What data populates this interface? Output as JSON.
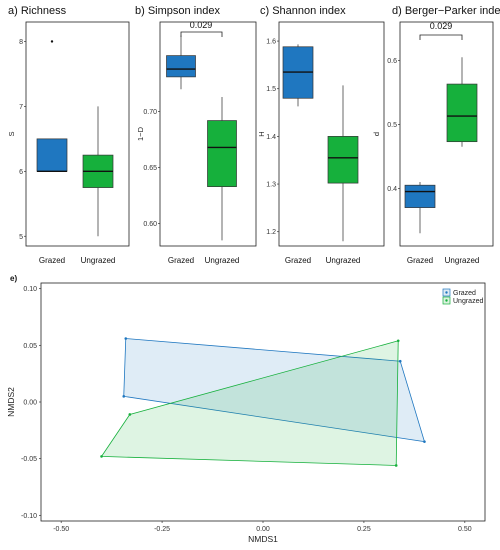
{
  "colors": {
    "grazed": "#1f77c0",
    "ungrazed": "#16b03c",
    "grazed_fill": "#1f77c0",
    "ungrazed_fill": "#16b03c"
  },
  "chart_data": [
    {
      "type": "box",
      "title": "a) Richness",
      "ylabel": "S",
      "categories": [
        "Grazed",
        "Ungrazed"
      ],
      "ylim": [
        4.85,
        8.3
      ],
      "yticks": [
        5,
        6,
        7,
        8
      ],
      "boxes": [
        {
          "min": 6.0,
          "q1": 6.0,
          "median": 6.0,
          "q3": 6.5,
          "max": 6.5,
          "outliers": [
            8.0
          ]
        },
        {
          "min": 5.0,
          "q1": 5.75,
          "median": 6.0,
          "q3": 6.25,
          "max": 7.0,
          "outliers": []
        }
      ]
    },
    {
      "type": "box",
      "title": "b) Simpson index",
      "ylabel": "1−D",
      "categories": [
        "Grazed",
        "Ungrazed"
      ],
      "ylim": [
        0.58,
        0.78
      ],
      "yticks": [
        0.6,
        0.65,
        0.7
      ],
      "ytick_labels": [
        "0.60",
        "0.65",
        "0.70"
      ],
      "annotation": "0.029",
      "boxes": [
        {
          "min": 0.72,
          "q1": 0.731,
          "median": 0.738,
          "q3": 0.75,
          "max": 0.768,
          "outliers": []
        },
        {
          "min": 0.585,
          "q1": 0.633,
          "median": 0.668,
          "q3": 0.692,
          "max": 0.713,
          "outliers": []
        }
      ]
    },
    {
      "type": "box",
      "title": "c) Shannon index",
      "ylabel": "H",
      "categories": [
        "Grazed",
        "Ungrazed"
      ],
      "ylim": [
        1.17,
        1.64
      ],
      "yticks": [
        1.2,
        1.3,
        1.4,
        1.5,
        1.6
      ],
      "boxes": [
        {
          "min": 1.463,
          "q1": 1.48,
          "median": 1.535,
          "q3": 1.588,
          "max": 1.593,
          "outliers": []
        },
        {
          "min": 1.18,
          "q1": 1.302,
          "median": 1.355,
          "q3": 1.4,
          "max": 1.507,
          "outliers": []
        }
      ]
    },
    {
      "type": "box",
      "title": "d) Berger−Parker index",
      "ylabel": "d",
      "categories": [
        "Grazed",
        "Ungrazed"
      ],
      "ylim": [
        0.31,
        0.66
      ],
      "yticks": [
        0.4,
        0.5,
        0.6
      ],
      "annotation": "0.029",
      "boxes": [
        {
          "min": 0.33,
          "q1": 0.37,
          "median": 0.395,
          "q3": 0.405,
          "max": 0.41,
          "outliers": []
        },
        {
          "min": 0.465,
          "q1": 0.473,
          "median": 0.513,
          "q3": 0.563,
          "max": 0.605,
          "outliers": []
        }
      ]
    },
    {
      "type": "scatter",
      "title": "e)",
      "xlabel": "NMDS1",
      "ylabel": "NMDS2",
      "xlim": [
        -0.55,
        0.55
      ],
      "ylim": [
        -0.105,
        0.105
      ],
      "xticks": [
        -0.5,
        -0.25,
        0.0,
        0.25,
        0.5
      ],
      "xtick_labels": [
        "-0.50",
        "-0.25",
        "0.00",
        "0.25",
        "0.50"
      ],
      "yticks": [
        -0.1,
        -0.05,
        0.0,
        0.05,
        0.1
      ],
      "ytick_labels": [
        "-0.10",
        "-0.05",
        "0.00",
        "0.05",
        "0.10"
      ],
      "legend_position": "top-right",
      "series": [
        {
          "name": "Grazed",
          "points": [
            [
              -0.34,
              0.056
            ],
            [
              -0.345,
              0.005
            ],
            [
              0.4,
              -0.035
            ],
            [
              0.34,
              0.036
            ]
          ]
        },
        {
          "name": "Ungrazed",
          "points": [
            [
              -0.4,
              -0.048
            ],
            [
              -0.33,
              -0.011
            ],
            [
              0.335,
              0.054
            ],
            [
              0.33,
              -0.056
            ]
          ]
        }
      ]
    }
  ]
}
